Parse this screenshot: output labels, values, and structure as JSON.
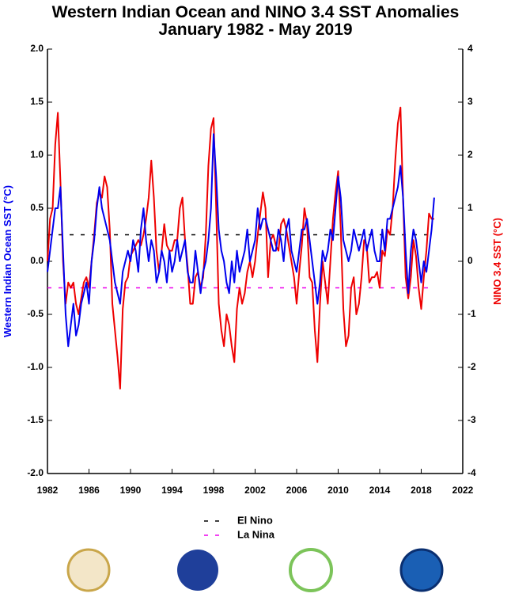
{
  "chart_data": {
    "type": "line",
    "title": "Western Indian Ocean and NINO 3.4 SST Anomalies",
    "subtitle": "January 1982 - May 2019",
    "y_label": "Western Indian Ocean SST (°C)",
    "y2_label": "NINO 3.4 SST (°C)",
    "xlim": [
      1982,
      2022
    ],
    "xticks": [
      1982,
      1986,
      1990,
      1994,
      1998,
      2002,
      2006,
      2010,
      2014,
      2018,
      2022
    ],
    "ylim": [
      -2,
      2
    ],
    "yticks": [
      {
        "value": -2,
        "label": "-2.0"
      },
      -1.5,
      {
        "value": -1,
        "label": "-1.0"
      },
      -0.5,
      {
        "value": 0,
        "label": "0.0"
      },
      0.5,
      {
        "value": 1,
        "label": "1.0"
      },
      1.5,
      {
        "value": 2,
        "label": "2.0"
      }
    ],
    "y2lim": [
      -4,
      4
    ],
    "y2ticks": [
      -4,
      -3,
      -2,
      -1,
      0,
      1,
      2,
      3,
      4
    ],
    "x": [
      1982,
      1982.25,
      1982.5,
      1982.75,
      1983,
      1983.25,
      1983.5,
      1983.75,
      1984,
      1984.25,
      1984.5,
      1984.75,
      1985,
      1985.25,
      1985.5,
      1985.75,
      1986,
      1986.25,
      1986.5,
      1986.75,
      1987,
      1987.25,
      1987.5,
      1987.75,
      1988,
      1988.25,
      1988.5,
      1988.75,
      1989,
      1989.25,
      1989.5,
      1989.75,
      1990,
      1990.25,
      1990.5,
      1990.75,
      1991,
      1991.25,
      1991.5,
      1991.75,
      1992,
      1992.25,
      1992.5,
      1992.75,
      1993,
      1993.25,
      1993.5,
      1993.75,
      1994,
      1994.25,
      1994.5,
      1994.75,
      1995,
      1995.25,
      1995.5,
      1995.75,
      1996,
      1996.25,
      1996.5,
      1996.75,
      1997,
      1997.25,
      1997.5,
      1997.75,
      1998,
      1998.25,
      1998.5,
      1998.75,
      1999,
      1999.25,
      1999.5,
      1999.75,
      2000,
      2000.25,
      2000.5,
      2000.75,
      2001,
      2001.25,
      2001.5,
      2001.75,
      2002,
      2002.25,
      2002.5,
      2002.75,
      2003,
      2003.25,
      2003.5,
      2003.75,
      2004,
      2004.25,
      2004.5,
      2004.75,
      2005,
      2005.25,
      2005.5,
      2005.75,
      2006,
      2006.25,
      2006.5,
      2006.75,
      2007,
      2007.25,
      2007.5,
      2007.75,
      2008,
      2008.25,
      2008.5,
      2008.75,
      2009,
      2009.25,
      2009.5,
      2009.75,
      2010,
      2010.25,
      2010.5,
      2010.75,
      2011,
      2011.25,
      2011.5,
      2011.75,
      2012,
      2012.25,
      2012.5,
      2012.75,
      2013,
      2013.25,
      2013.5,
      2013.75,
      2014,
      2014.25,
      2014.5,
      2014.75,
      2015,
      2015.25,
      2015.5,
      2015.75,
      2016,
      2016.25,
      2016.5,
      2016.75,
      2017,
      2017.25,
      2017.5,
      2017.75,
      2018,
      2018.25,
      2018.5,
      2018.75,
      2019,
      2019.25
    ],
    "series": [
      {
        "name": "Western Indian Ocean SST",
        "color": "#0000ee",
        "axis": "y",
        "values": [
          -0.1,
          0.1,
          0.3,
          0.5,
          0.5,
          0.7,
          0.1,
          -0.5,
          -0.8,
          -0.6,
          -0.4,
          -0.7,
          -0.6,
          -0.4,
          -0.3,
          -0.2,
          -0.4,
          0.0,
          0.2,
          0.5,
          0.7,
          0.5,
          0.4,
          0.3,
          0.2,
          0.0,
          -0.2,
          -0.3,
          -0.4,
          -0.1,
          0.0,
          0.1,
          0.0,
          0.2,
          0.1,
          -0.1,
          0.3,
          0.5,
          0.2,
          0.0,
          0.2,
          0.1,
          -0.2,
          -0.1,
          0.1,
          0.0,
          -0.2,
          0.1,
          -0.1,
          0.0,
          0.2,
          0.0,
          0.1,
          0.2,
          -0.1,
          -0.2,
          -0.2,
          0.1,
          -0.1,
          -0.3,
          -0.1,
          0.0,
          0.2,
          0.5,
          1.2,
          0.8,
          0.3,
          0.1,
          0.0,
          -0.2,
          -0.3,
          0.0,
          -0.2,
          0.1,
          -0.1,
          0.0,
          0.1,
          0.3,
          0.0,
          0.1,
          0.2,
          0.5,
          0.3,
          0.4,
          0.4,
          0.3,
          0.2,
          0.1,
          0.1,
          0.3,
          0.2,
          0.0,
          0.3,
          0.4,
          0.1,
          0.0,
          -0.1,
          0.1,
          0.3,
          0.3,
          0.4,
          0.2,
          0.0,
          -0.2,
          -0.4,
          -0.2,
          0.1,
          0.0,
          0.1,
          0.3,
          0.2,
          0.5,
          0.8,
          0.6,
          0.2,
          0.1,
          0.0,
          0.1,
          0.3,
          0.2,
          0.1,
          0.2,
          0.3,
          0.1,
          0.2,
          0.3,
          0.1,
          0.0,
          0.0,
          0.3,
          0.1,
          0.4,
          0.4,
          0.5,
          0.6,
          0.7,
          0.9,
          0.6,
          0.1,
          -0.3,
          0.1,
          0.3,
          0.2,
          0.0,
          -0.2,
          0.0,
          -0.1,
          0.1,
          0.3,
          0.6
        ]
      },
      {
        "name": "NINO 3.4 SST",
        "color": "#ee0000",
        "axis": "y2",
        "values": [
          0.0,
          0.8,
          1.0,
          2.2,
          2.8,
          1.5,
          0.0,
          -0.8,
          -0.4,
          -0.5,
          -0.4,
          -0.8,
          -1.0,
          -0.7,
          -0.4,
          -0.3,
          -0.5,
          0.0,
          0.5,
          1.1,
          1.3,
          1.2,
          1.6,
          1.4,
          0.6,
          -0.8,
          -1.3,
          -1.8,
          -2.4,
          -0.9,
          -0.4,
          -0.3,
          0.1,
          0.2,
          0.3,
          0.4,
          0.3,
          0.5,
          0.8,
          1.2,
          1.9,
          1.2,
          0.2,
          -0.2,
          0.2,
          0.7,
          0.3,
          0.2,
          0.2,
          0.4,
          0.4,
          1.0,
          1.2,
          0.4,
          -0.1,
          -0.8,
          -0.8,
          -0.3,
          -0.2,
          -0.5,
          -0.3,
          0.5,
          1.8,
          2.5,
          2.7,
          1.0,
          -0.8,
          -1.3,
          -1.6,
          -1.0,
          -1.2,
          -1.6,
          -1.9,
          -0.9,
          -0.5,
          -0.8,
          -0.6,
          -0.2,
          0.0,
          -0.3,
          0.0,
          0.5,
          0.9,
          1.3,
          1.0,
          -0.3,
          0.4,
          0.5,
          0.3,
          0.2,
          0.7,
          0.8,
          0.6,
          0.3,
          0.0,
          -0.3,
          -0.8,
          -0.2,
          0.3,
          1.0,
          0.7,
          -0.3,
          -0.4,
          -1.3,
          -1.9,
          -0.8,
          0.0,
          -0.4,
          -0.8,
          0.0,
          0.8,
          1.3,
          1.7,
          0.6,
          -0.9,
          -1.6,
          -1.4,
          -0.5,
          -0.3,
          -1.0,
          -0.8,
          -0.3,
          0.4,
          0.3,
          -0.4,
          -0.3,
          -0.3,
          -0.2,
          -0.5,
          0.2,
          0.1,
          0.6,
          0.5,
          1.0,
          1.9,
          2.6,
          2.9,
          1.2,
          -0.3,
          -0.7,
          -0.3,
          0.4,
          0.1,
          -0.5,
          -0.9,
          -0.3,
          0.2,
          0.9,
          0.8,
          0.8
        ]
      }
    ],
    "reference_lines": [
      {
        "name": "El Nino",
        "value": 0.5,
        "axis": "y2",
        "color": "#000000"
      },
      {
        "name": "La Nina",
        "value": -0.5,
        "axis": "y2",
        "color": "#ee00ee"
      }
    ]
  }
}
